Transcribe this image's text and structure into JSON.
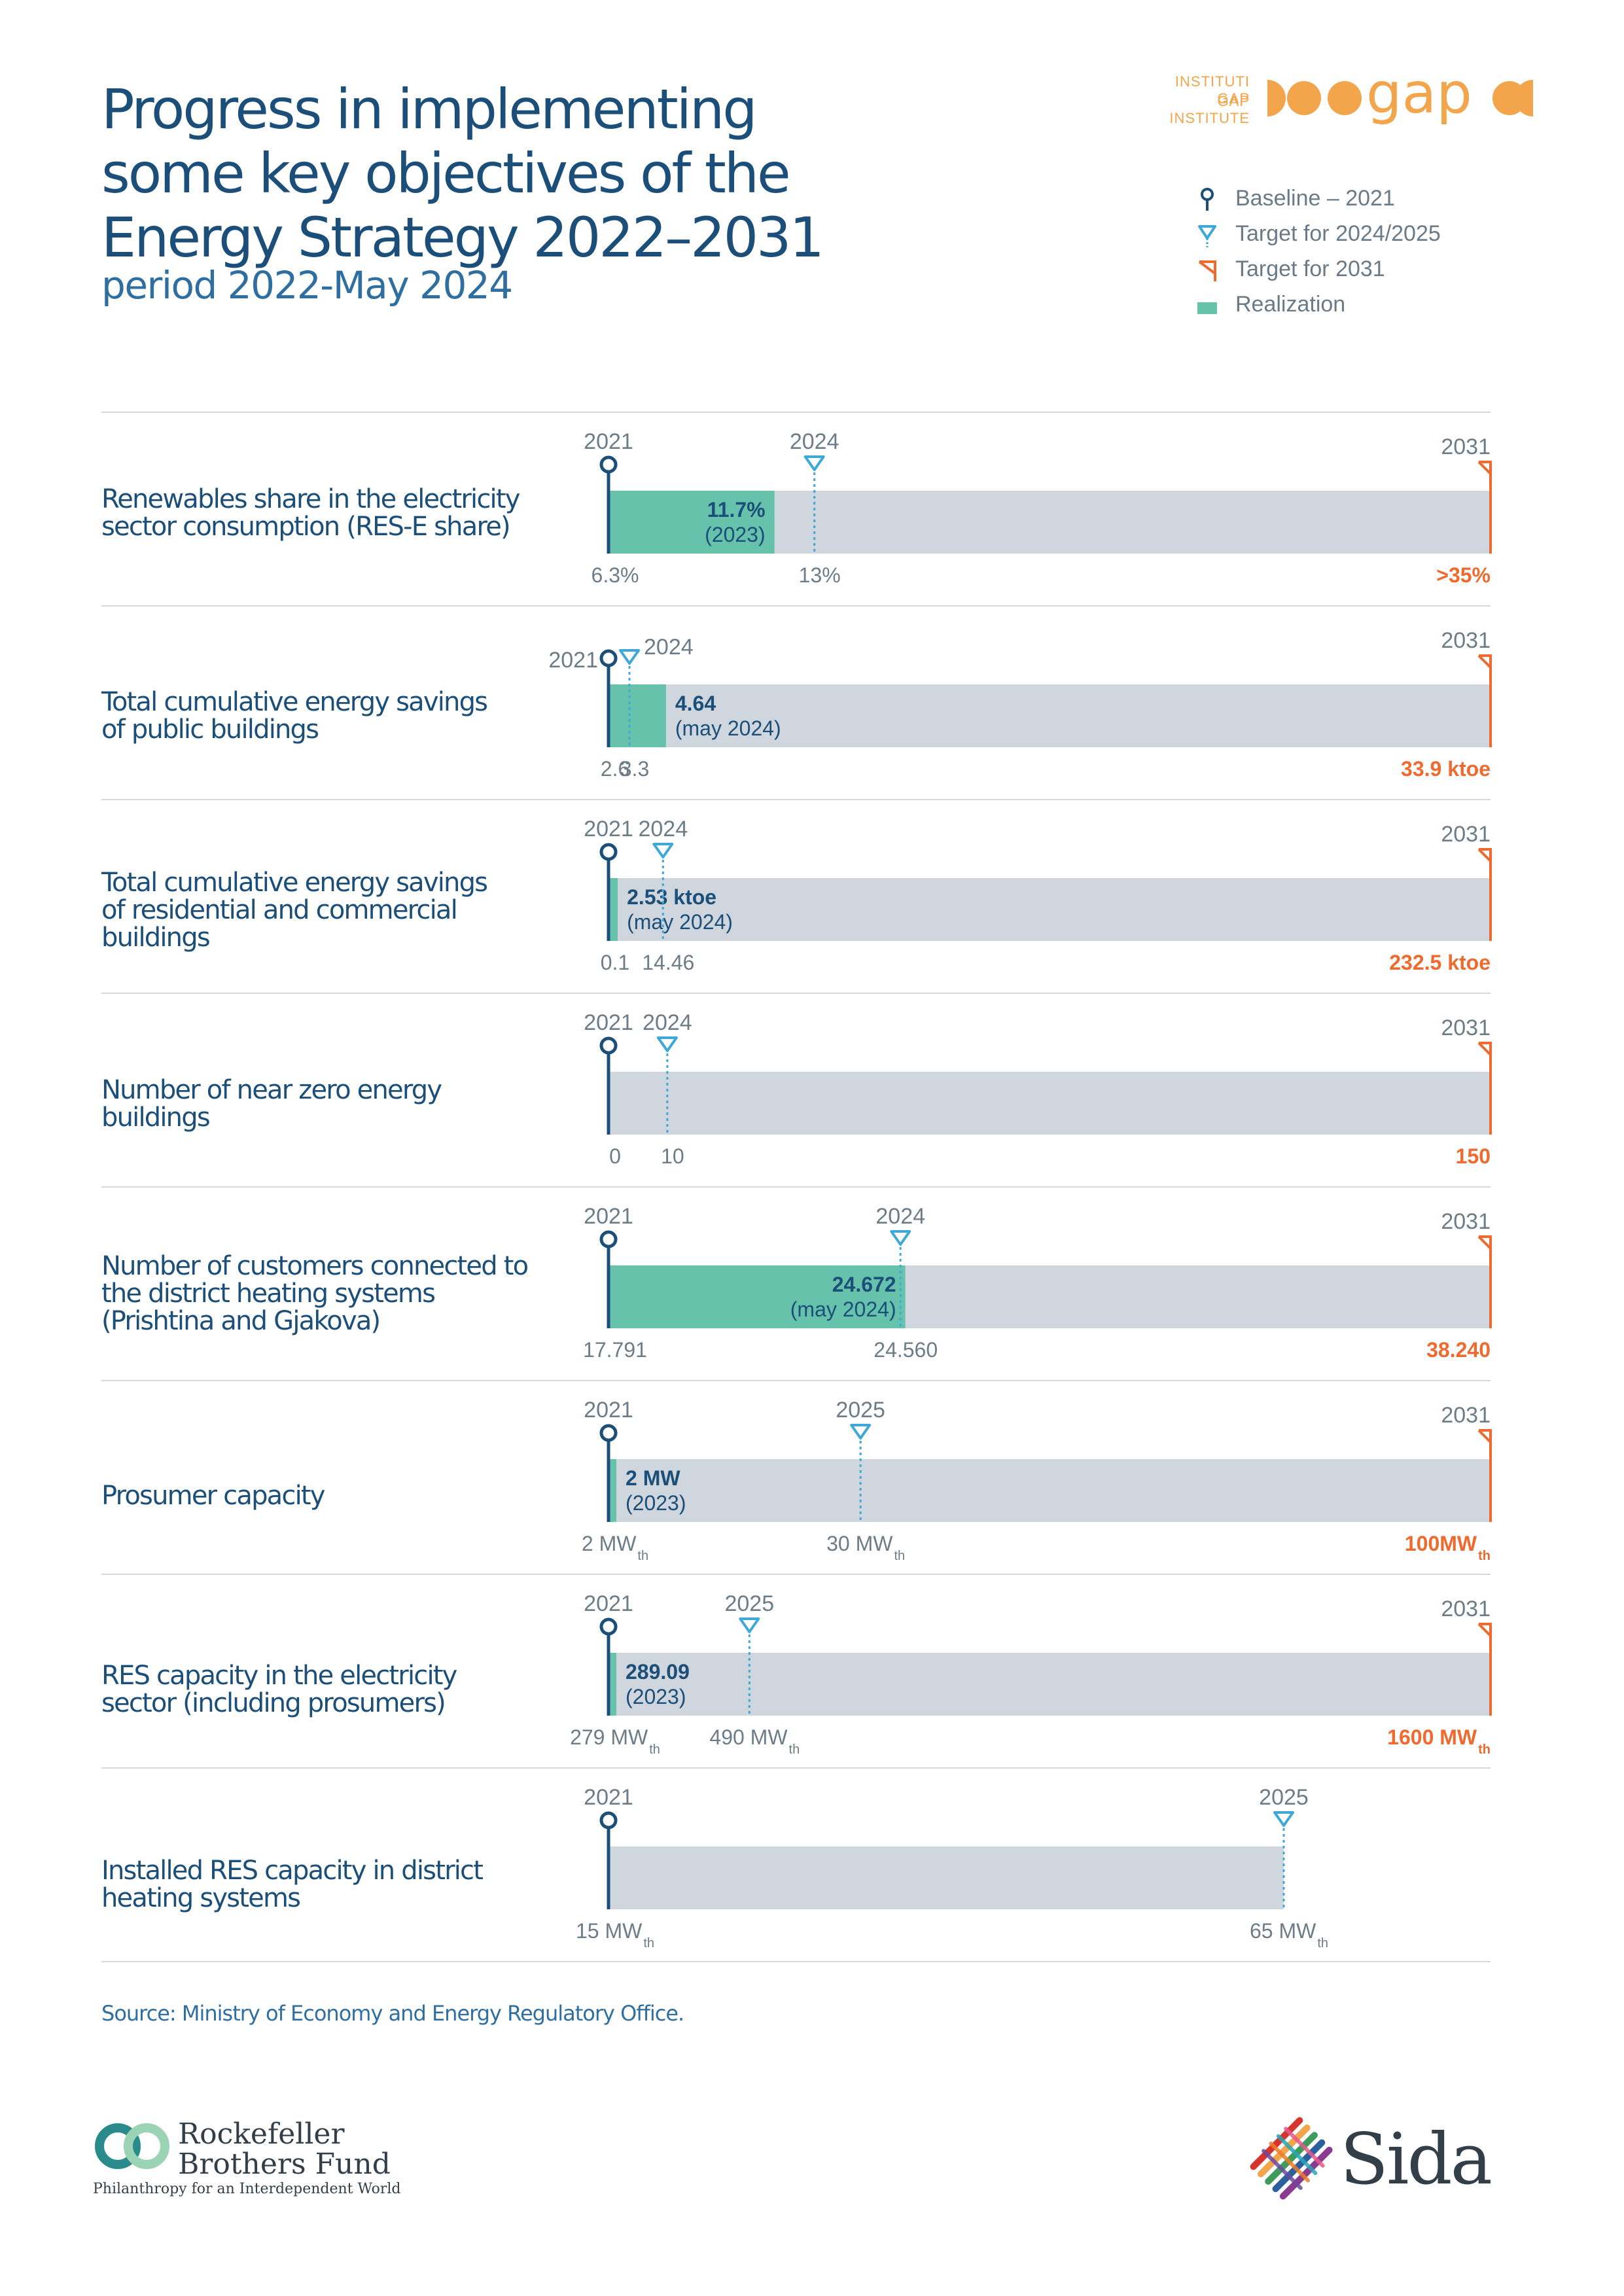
{
  "header": {
    "title_lines": [
      "Progress in implementing",
      "some key objectives of the",
      "Energy Strategy 2022–2031"
    ],
    "subtitle": "period 2022-May 2024",
    "org_line1": "INSTITUTI GAP",
    "org_line2": "GAP INSTITUTE",
    "org_logo_text": "gap",
    "brand_color": "#f2a54a"
  },
  "legend": {
    "items": [
      {
        "label": "Baseline – 2021",
        "marker": "baseline-pin-icon",
        "color": "#1b4f7a"
      },
      {
        "label": "Target for 2024/2025",
        "marker": "triangle-down-icon",
        "color": "#3ea8d8"
      },
      {
        "label": "Target for 2031",
        "marker": "flag-icon",
        "color": "#ef6a2e"
      },
      {
        "label": "Realization",
        "marker": "realization-swatch",
        "color": "#66c2aa"
      }
    ]
  },
  "chart_data": {
    "type": "bar",
    "colors": {
      "bar": "#cfd6dd",
      "realization": "#66c2aa",
      "baseline": "#1b4f7a",
      "mid_target": "#3ea8d8",
      "final_target": "#ef6a2e",
      "value_text": "#1b4f7a",
      "muted_text": "#6d7d88"
    },
    "rows": [
      {
        "label_lines": [
          "Renewables share in the electricity",
          "sector consumption (RES-E share)"
        ],
        "baseline": {
          "year": "2021",
          "label": "6.3%",
          "value": 6.3
        },
        "mid_target": {
          "year": "2024",
          "label": "13%",
          "value": 13
        },
        "final_target": {
          "year": "2031",
          "label": ">35%",
          "value": 35
        },
        "realization": {
          "value": 11.7,
          "value_label": "11.7%",
          "note": "(2023)"
        }
      },
      {
        "label_lines": [
          "Total cumulative energy savings",
          "of public buildings"
        ],
        "baseline": {
          "year": "2021",
          "label": "2.6",
          "value": 2.6
        },
        "mid_target": {
          "year": "2024",
          "label": "3.3",
          "value": 3.3
        },
        "final_target": {
          "year": "2031",
          "label": "33.9 ktoe",
          "value": 33.9
        },
        "realization": {
          "value": 4.64,
          "value_label": "4.64",
          "note": "(may 2024)"
        }
      },
      {
        "label_lines": [
          "Total cumulative energy savings",
          "of residential and commercial",
          "buildings"
        ],
        "baseline": {
          "year": "2021",
          "label": "0.1",
          "value": 0.1
        },
        "mid_target": {
          "year": "2024",
          "label": "14.46",
          "value": 14.46
        },
        "final_target": {
          "year": "2031",
          "label": "232.5 ktoe",
          "value": 232.5
        },
        "realization": {
          "value": 2.53,
          "value_label": "2.53 ktoe",
          "note": "(may 2024)"
        }
      },
      {
        "label_lines": [
          "Number of near zero energy",
          "buildings"
        ],
        "baseline": {
          "year": "2021",
          "label": "0",
          "value": 0
        },
        "mid_target": {
          "year": "2024",
          "label": "10",
          "value": 10
        },
        "final_target": {
          "year": "2031",
          "label": "150",
          "value": 150
        },
        "realization": null
      },
      {
        "label_lines": [
          "Number of customers connected to",
          "the district heating systems",
          "(Prishtina and Gjakova)"
        ],
        "baseline": {
          "year": "2021",
          "label": "17.791",
          "value": 17791
        },
        "mid_target": {
          "year": "2024",
          "label": "24.560",
          "value": 24560
        },
        "final_target": {
          "year": "2031",
          "label": "38.240",
          "value": 38240
        },
        "realization": {
          "value": 24672,
          "value_label": "24.672",
          "note": "(may 2024)"
        }
      },
      {
        "label_lines": [
          "Prosumer capacity"
        ],
        "baseline": {
          "year": "2021",
          "label": "2 MW",
          "sub": "th",
          "value": 2
        },
        "mid_target": {
          "year": "2025",
          "label": "30 MW",
          "sub": "th",
          "value": 30
        },
        "final_target": {
          "year": "2031",
          "label": "100MW",
          "sub": "th",
          "value": 100
        },
        "realization": {
          "value": 2,
          "value_label": "2 MW",
          "note": "(2023)"
        }
      },
      {
        "label_lines": [
          "RES capacity in the electricity",
          "sector  (including prosumers)"
        ],
        "baseline": {
          "year": "2021",
          "label": "279 MW",
          "sub": "th",
          "value": 279
        },
        "mid_target": {
          "year": "2025",
          "label": "490 MW",
          "sub": "th",
          "value": 490
        },
        "final_target": {
          "year": "2031",
          "label": "1600 MW",
          "sub": "th",
          "value": 1600
        },
        "realization": {
          "value": 289.09,
          "value_label": "289.09",
          "note": "(2023)"
        }
      },
      {
        "label_lines": [
          "Installed RES capacity in district",
          "heating systems"
        ],
        "baseline": {
          "year": "2021",
          "label": "15 MW",
          "sub": "th",
          "value": 15
        },
        "mid_target": {
          "year": "2025",
          "label": "65 MW",
          "sub": "th",
          "value": 65
        },
        "final_target": null,
        "realization": null
      }
    ]
  },
  "footer": {
    "source": "Source: Ministry of Economy and Energy Regulatory Office.",
    "rbf_line1": "Rockefeller",
    "rbf_line2": "Brothers Fund",
    "rbf_tagline": "Philanthropy for an Interdependent World",
    "sida": "Sida"
  }
}
